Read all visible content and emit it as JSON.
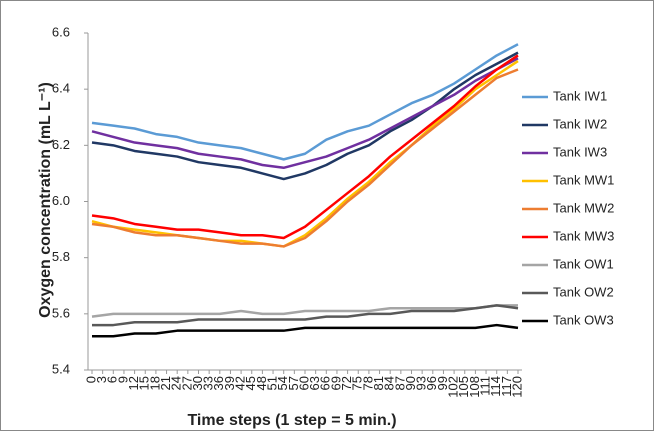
{
  "chart_data": {
    "type": "line",
    "xlabel": "Time steps (1 step = 5 min.)",
    "ylabel": "Oxygen concentration (mL L⁻¹)",
    "x": [
      0,
      6,
      12,
      18,
      24,
      30,
      36,
      42,
      48,
      54,
      60,
      66,
      72,
      78,
      84,
      90,
      96,
      102,
      108,
      114,
      120
    ],
    "xlim": [
      0,
      120
    ],
    "xticks": [
      0,
      3,
      6,
      9,
      12,
      15,
      18,
      21,
      24,
      27,
      30,
      33,
      36,
      39,
      42,
      45,
      48,
      51,
      54,
      57,
      60,
      63,
      66,
      69,
      72,
      75,
      78,
      81,
      84,
      87,
      90,
      93,
      96,
      99,
      102,
      105,
      108,
      111,
      114,
      117,
      120
    ],
    "ylim": [
      5.4,
      6.6
    ],
    "yticks": [
      5.4,
      5.6,
      5.8,
      {
        "value": 6,
        "label": "6.0"
      },
      6.2,
      6.4,
      6.6
    ],
    "legend": "right",
    "series": [
      {
        "name": "Tank IW1",
        "color": "#5b9bd5",
        "values": [
          6.28,
          6.27,
          6.26,
          6.24,
          6.23,
          6.21,
          6.2,
          6.19,
          6.17,
          6.15,
          6.17,
          6.22,
          6.25,
          6.27,
          6.31,
          6.35,
          6.38,
          6.42,
          6.47,
          6.52,
          6.56
        ]
      },
      {
        "name": "Tank IW2",
        "color": "#203864",
        "values": [
          6.21,
          6.2,
          6.18,
          6.17,
          6.16,
          6.14,
          6.13,
          6.12,
          6.1,
          6.08,
          6.1,
          6.13,
          6.17,
          6.2,
          6.25,
          6.29,
          6.34,
          6.4,
          6.45,
          6.49,
          6.53
        ]
      },
      {
        "name": "Tank IW3",
        "color": "#7030a0",
        "values": [
          6.25,
          6.23,
          6.21,
          6.2,
          6.19,
          6.17,
          6.16,
          6.15,
          6.13,
          6.12,
          6.14,
          6.16,
          6.19,
          6.22,
          6.26,
          6.3,
          6.34,
          6.38,
          6.43,
          6.47,
          6.51
        ]
      },
      {
        "name": "Tank MW1",
        "color": "#ffc000",
        "values": [
          5.93,
          5.91,
          5.9,
          5.89,
          5.88,
          5.87,
          5.86,
          5.86,
          5.85,
          5.84,
          5.88,
          5.94,
          6.01,
          6.07,
          6.14,
          6.2,
          6.27,
          6.33,
          6.4,
          6.45,
          6.5
        ]
      },
      {
        "name": "Tank MW2",
        "color": "#ed7d31",
        "values": [
          5.92,
          5.91,
          5.89,
          5.88,
          5.88,
          5.87,
          5.86,
          5.85,
          5.85,
          5.84,
          5.87,
          5.93,
          6.0,
          6.06,
          6.13,
          6.2,
          6.26,
          6.32,
          6.38,
          6.44,
          6.47
        ]
      },
      {
        "name": "Tank MW3",
        "color": "#ff0000",
        "values": [
          5.95,
          5.94,
          5.92,
          5.91,
          5.9,
          5.9,
          5.89,
          5.88,
          5.88,
          5.87,
          5.91,
          5.97,
          6.03,
          6.09,
          6.16,
          6.22,
          6.28,
          6.34,
          6.41,
          6.47,
          6.52
        ]
      },
      {
        "name": "Tank OW1",
        "color": "#a5a5a5",
        "values": [
          5.59,
          5.6,
          5.6,
          5.6,
          5.6,
          5.6,
          5.6,
          5.61,
          5.6,
          5.6,
          5.61,
          5.61,
          5.61,
          5.61,
          5.62,
          5.62,
          5.62,
          5.62,
          5.62,
          5.63,
          5.63
        ]
      },
      {
        "name": "Tank OW2",
        "color": "#595959",
        "values": [
          5.56,
          5.56,
          5.57,
          5.57,
          5.57,
          5.58,
          5.58,
          5.58,
          5.58,
          5.58,
          5.58,
          5.59,
          5.59,
          5.6,
          5.6,
          5.61,
          5.61,
          5.61,
          5.62,
          5.63,
          5.62
        ]
      },
      {
        "name": "Tank OW3",
        "color": "#000000",
        "values": [
          5.52,
          5.52,
          5.53,
          5.53,
          5.54,
          5.54,
          5.54,
          5.54,
          5.54,
          5.54,
          5.55,
          5.55,
          5.55,
          5.55,
          5.55,
          5.55,
          5.55,
          5.55,
          5.55,
          5.56,
          5.55
        ]
      }
    ]
  }
}
